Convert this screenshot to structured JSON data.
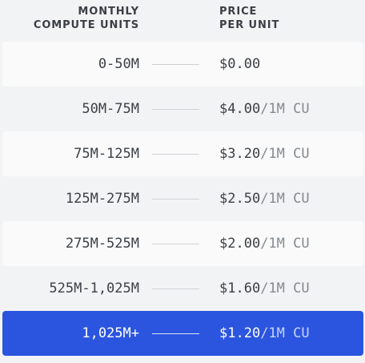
{
  "header": {
    "left_line1": "MONTHLY",
    "left_line2": "COMPUTE UNITS",
    "right_line1": "PRICE",
    "right_line2": "PER UNIT"
  },
  "rows": [
    {
      "range": "0-50M",
      "price": "$0.00",
      "unit": ""
    },
    {
      "range": "50M-75M",
      "price": "$4.00",
      "unit": "/1M CU"
    },
    {
      "range": "75M-125M",
      "price": "$3.20",
      "unit": "/1M CU"
    },
    {
      "range": "125M-275M",
      "price": "$2.50",
      "unit": "/1M CU"
    },
    {
      "range": "275M-525M",
      "price": "$2.00",
      "unit": "/1M CU"
    },
    {
      "range": "525M-1,025M",
      "price": "$1.60",
      "unit": "/1M CU"
    },
    {
      "range": "1,025M+",
      "price": "$1.20",
      "unit": "/1M CU"
    }
  ],
  "colors": {
    "highlight": "#2b55df",
    "page_background": "#f2f3f4",
    "stripe": "#fafafa",
    "text": "#3b4046",
    "muted_unit": "#858a91"
  }
}
